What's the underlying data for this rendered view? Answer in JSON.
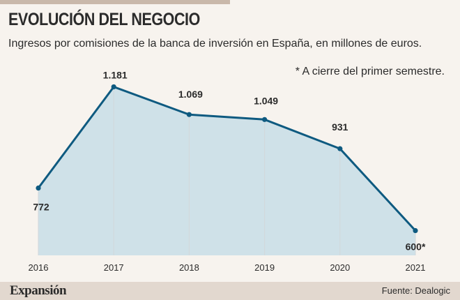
{
  "header": {
    "title": "EVOLUCIÓN DEL NEGOCIO",
    "subtitle": "Ingresos por comisiones de la banca de inversión en España, en millones de euros.",
    "note": "* A cierre del primer semestre."
  },
  "footer": {
    "brand": "Expansión",
    "source": "Fuente: Dealogic"
  },
  "colors": {
    "line": "#0e5a80",
    "area": "#c8dde6",
    "gridline": "#d2d7da"
  },
  "chart_data": {
    "type": "area",
    "title": "EVOLUCIÓN DEL NEGOCIO",
    "x": [
      "2016",
      "2017",
      "2018",
      "2019",
      "2020",
      "2021"
    ],
    "series": [
      {
        "values": [
          772,
          1181,
          1069,
          1049,
          931,
          600
        ]
      }
    ],
    "data_labels": [
      "772",
      "1.181",
      "1.069",
      "1.049",
      "931",
      "600*"
    ],
    "xlabel": "",
    "ylabel": "",
    "ylim": [
      500,
      1250
    ],
    "grid": "vertical",
    "legend": "none"
  }
}
